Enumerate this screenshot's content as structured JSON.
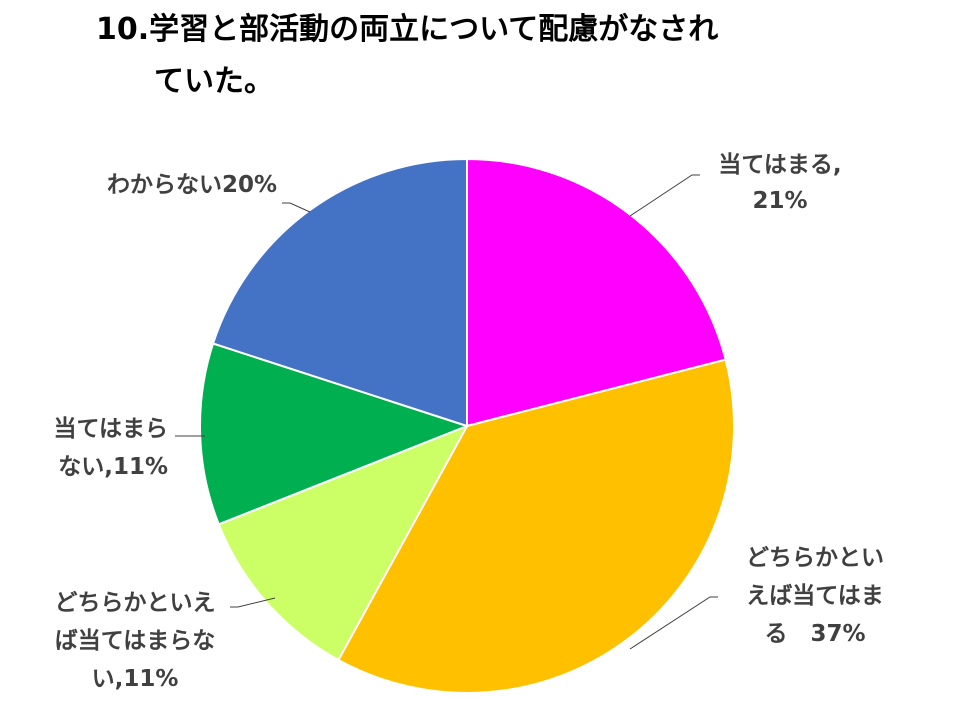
{
  "title": {
    "line1": "10.学習と部活動の両立について配慮がなされ",
    "line2": "ていた。"
  },
  "chart_data": {
    "type": "pie",
    "title": "10.学習と部活動の両立について配慮がなされていた。",
    "slices": [
      {
        "name": "当てはまる",
        "value": 21,
        "color": "#ff00ff",
        "label_lines": [
          "当てはまる,",
          "21%"
        ]
      },
      {
        "name": "どちらかといえば当てはまる",
        "value": 37,
        "color": "#ffc000",
        "label_lines": [
          "どちらかとい",
          "えば当てはま",
          "る　37%"
        ]
      },
      {
        "name": "どちらかといえば当てはまらない",
        "value": 11,
        "color": "#ccff66",
        "label_lines": [
          "どちらかといえ",
          "ば当てはまらな",
          "い,11%"
        ]
      },
      {
        "name": "当てはまらない",
        "value": 11,
        "color": "#00b050",
        "label_lines": [
          "当てはまら",
          "ない,11%"
        ]
      },
      {
        "name": "わからない",
        "value": 20,
        "color": "#4472c4",
        "label_lines": [
          "わからない20%"
        ]
      }
    ]
  }
}
